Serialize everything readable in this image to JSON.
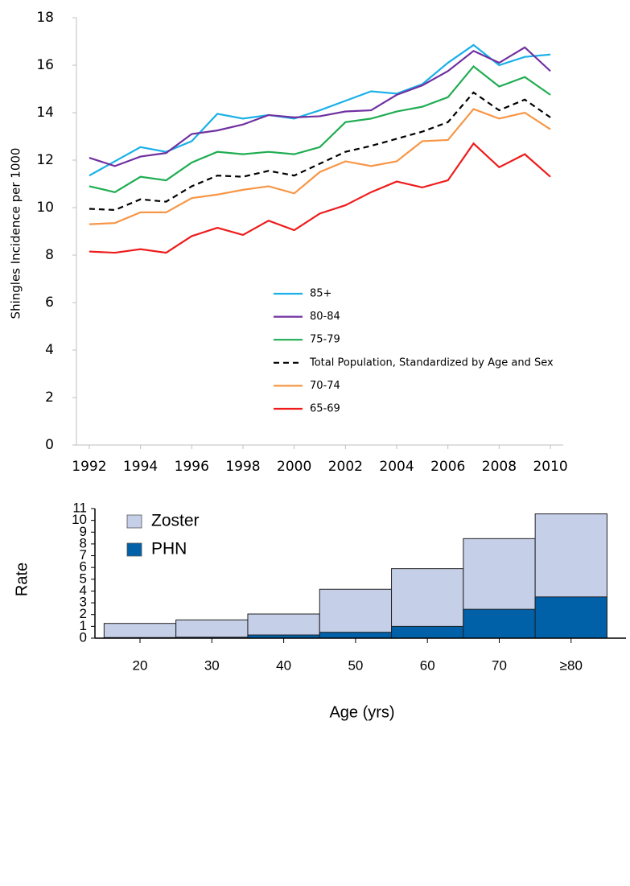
{
  "chart_data": [
    {
      "type": "line",
      "y_label": "Shingles Incidence per 1000",
      "x": [
        1992,
        1993,
        1994,
        1995,
        1996,
        1997,
        1998,
        1999,
        2000,
        2001,
        2002,
        2003,
        2004,
        2005,
        2006,
        2007,
        2008,
        2009,
        2010
      ],
      "xlim": [
        1991.5,
        2010.5
      ],
      "xticks": [
        1992,
        1994,
        1996,
        1998,
        2000,
        2002,
        2004,
        2006,
        2008,
        2010
      ],
      "ylim": [
        0,
        18
      ],
      "yticks": [
        0,
        2,
        4,
        6,
        8,
        10,
        12,
        14,
        16,
        18
      ],
      "legend": "center",
      "series": [
        {
          "name": "85+",
          "color": "#1ab0e8",
          "values": [
            11.35,
            11.95,
            12.55,
            12.35,
            12.8,
            13.95,
            13.75,
            13.9,
            13.75,
            14.1,
            14.5,
            14.9,
            14.8,
            15.2,
            16.1,
            16.85,
            16.0,
            16.35,
            16.45
          ]
        },
        {
          "name": "80-84",
          "color": "#7030a0",
          "values": [
            12.1,
            11.75,
            12.15,
            12.3,
            13.1,
            13.25,
            13.5,
            13.9,
            13.8,
            13.85,
            14.05,
            14.1,
            14.75,
            15.15,
            15.75,
            16.6,
            16.1,
            16.75,
            15.75
          ]
        },
        {
          "name": "75-79",
          "color": "#1fad52",
          "values": [
            10.9,
            10.65,
            11.3,
            11.15,
            11.9,
            12.35,
            12.25,
            12.35,
            12.25,
            12.55,
            13.6,
            13.75,
            14.05,
            14.25,
            14.65,
            15.95,
            15.1,
            15.5,
            14.75
          ]
        },
        {
          "name": "Total Population, Standardized by Age and Sex",
          "color": "#000000",
          "style": "dashed",
          "values": [
            9.95,
            9.9,
            10.35,
            10.25,
            10.9,
            11.35,
            11.3,
            11.55,
            11.35,
            11.85,
            12.35,
            12.6,
            12.9,
            13.2,
            13.6,
            14.85,
            14.1,
            14.55,
            13.8
          ]
        },
        {
          "name": "70-74",
          "color": "#f79646",
          "values": [
            9.3,
            9.35,
            9.8,
            9.8,
            10.4,
            10.55,
            10.75,
            10.9,
            10.6,
            11.5,
            11.95,
            11.75,
            11.95,
            12.8,
            12.85,
            14.15,
            13.75,
            14.0,
            13.3
          ]
        },
        {
          "name": "65-69",
          "color": "#ee1c1c",
          "values": [
            8.15,
            8.1,
            8.25,
            8.1,
            8.8,
            9.15,
            8.85,
            9.45,
            9.05,
            9.75,
            10.1,
            10.65,
            11.1,
            10.85,
            11.15,
            12.7,
            11.7,
            12.25,
            11.3
          ]
        }
      ]
    },
    {
      "type": "bar",
      "x_label": "Age (yrs)",
      "y_label": "Rate",
      "categories": [
        "20",
        "30",
        "40",
        "50",
        "60",
        "70",
        "≥80"
      ],
      "ylim": [
        0,
        11
      ],
      "yticks": [
        0,
        1,
        2,
        3,
        4,
        5,
        6,
        7,
        8,
        9,
        10,
        11
      ],
      "legend": "upper left",
      "series": [
        {
          "name": "Zoster",
          "color": "#c5cfe8",
          "values": [
            1.25,
            1.55,
            2.05,
            4.15,
            5.9,
            8.45,
            10.55
          ]
        },
        {
          "name": "PHN",
          "color": "#0060a8",
          "values": [
            0.05,
            0.08,
            0.27,
            0.5,
            1.0,
            2.45,
            3.5
          ]
        }
      ]
    }
  ]
}
